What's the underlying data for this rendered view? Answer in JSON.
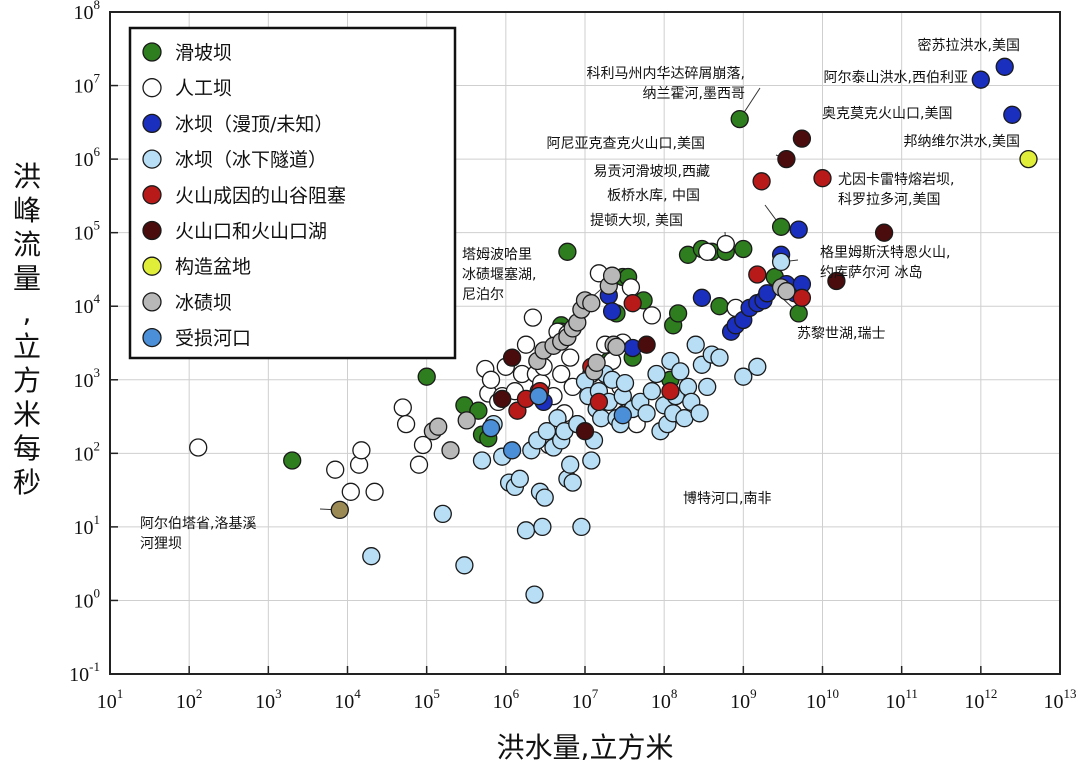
{
  "chart_data": {
    "type": "scatter",
    "xlabel": "洪水量,立方米",
    "ylabel": "洪峰流量,立方米每秒",
    "x_scale": "log",
    "y_scale": "log",
    "xlim": [
      10,
      10000000000000
    ],
    "ylim": [
      0.1,
      100000000
    ],
    "x_ticks": [
      {
        "base": "10",
        "exp": "1"
      },
      {
        "base": "10",
        "exp": "2"
      },
      {
        "base": "10",
        "exp": "3"
      },
      {
        "base": "10",
        "exp": "4"
      },
      {
        "base": "10",
        "exp": "5"
      },
      {
        "base": "10",
        "exp": "6"
      },
      {
        "base": "10",
        "exp": "7"
      },
      {
        "base": "10",
        "exp": "8"
      },
      {
        "base": "10",
        "exp": "9"
      },
      {
        "base": "10",
        "exp": "10"
      },
      {
        "base": "10",
        "exp": "11"
      },
      {
        "base": "10",
        "exp": "12"
      },
      {
        "base": "10",
        "exp": "13"
      }
    ],
    "y_ticks": [
      {
        "base": "10",
        "exp": "-1"
      },
      {
        "base": "10",
        "exp": "0"
      },
      {
        "base": "10",
        "exp": "1"
      },
      {
        "base": "10",
        "exp": "2"
      },
      {
        "base": "10",
        "exp": "3"
      },
      {
        "base": "10",
        "exp": "4"
      },
      {
        "base": "10",
        "exp": "5"
      },
      {
        "base": "10",
        "exp": "6"
      },
      {
        "base": "10",
        "exp": "7"
      },
      {
        "base": "10",
        "exp": "8"
      }
    ],
    "grid": true,
    "legend_position": "top-left",
    "series": [
      {
        "name": "滑坡坝",
        "color": "#2e7d1e",
        "points": [
          [
            2000,
            80
          ],
          [
            100000,
            1100
          ],
          [
            300000,
            450
          ],
          [
            500000,
            180
          ],
          [
            600000,
            160
          ],
          [
            450000,
            380
          ],
          [
            5000000,
            5500
          ],
          [
            5000000,
            4500
          ],
          [
            6000000,
            55000
          ],
          [
            20000000,
            1800
          ],
          [
            25000000,
            8000
          ],
          [
            30000000,
            25000
          ],
          [
            35000000,
            25000
          ],
          [
            40000000,
            2000
          ],
          [
            55000000,
            12000
          ],
          [
            120000000,
            1000
          ],
          [
            130000000,
            5500
          ],
          [
            150000000,
            8000
          ],
          [
            200000000,
            50000
          ],
          [
            300000000,
            60000
          ],
          [
            400000000,
            55000
          ],
          [
            500000000,
            10000
          ],
          [
            600000000,
            55000
          ],
          [
            900000000,
            3500000
          ],
          [
            1000000000,
            60000
          ],
          [
            3000000000,
            120000
          ],
          [
            5000000000,
            8000
          ],
          [
            2500000000,
            25000
          ]
        ]
      },
      {
        "name": "人工坝",
        "color": "#ffffff",
        "points": [
          [
            130,
            120
          ],
          [
            7000,
            60
          ],
          [
            11000,
            30
          ],
          [
            14000,
            70
          ],
          [
            15000,
            110
          ],
          [
            22000,
            30
          ],
          [
            50000,
            420
          ],
          [
            55000,
            250
          ],
          [
            80000,
            70
          ],
          [
            90000,
            130
          ],
          [
            550000,
            1400
          ],
          [
            600000,
            650
          ],
          [
            650000,
            1000
          ],
          [
            800000,
            500
          ],
          [
            900000,
            600
          ],
          [
            1000000,
            1500
          ],
          [
            1300000,
            700
          ],
          [
            1600000,
            1200
          ],
          [
            1800000,
            3000
          ],
          [
            2200000,
            7000
          ],
          [
            2400000,
            1200
          ],
          [
            2600000,
            700
          ],
          [
            2800000,
            900
          ],
          [
            3000000,
            1500
          ],
          [
            3500000,
            130
          ],
          [
            4000000,
            600
          ],
          [
            4500000,
            4500
          ],
          [
            5000000,
            1200
          ],
          [
            5500000,
            350
          ],
          [
            6000000,
            4200
          ],
          [
            6500000,
            2000
          ],
          [
            7000000,
            800
          ],
          [
            8000000,
            250
          ],
          [
            12000000,
            1200
          ],
          [
            15000000,
            28000
          ],
          [
            18000000,
            3000
          ],
          [
            22000000,
            1800
          ],
          [
            28000000,
            800
          ],
          [
            30000000,
            3200
          ],
          [
            32000000,
            350
          ],
          [
            38000000,
            18000
          ],
          [
            45000000,
            250
          ],
          [
            70000000,
            7500
          ],
          [
            350000000,
            55000
          ],
          [
            600000000,
            70000
          ],
          [
            800000000,
            9500
          ]
        ]
      },
      {
        "name": "冰坝（漫顶/未知）",
        "color": "#1b2fbf",
        "points": [
          [
            3000000,
            500
          ],
          [
            20000000,
            14000
          ],
          [
            22000000,
            8500
          ],
          [
            40000000,
            2700
          ],
          [
            300000000,
            13000
          ],
          [
            700000000,
            4500
          ],
          [
            800000000,
            5500
          ],
          [
            1000000000,
            6500
          ],
          [
            1200000000,
            9500
          ],
          [
            1500000000,
            11000
          ],
          [
            1800000000,
            12000
          ],
          [
            2000000000,
            15000
          ],
          [
            3000000000,
            50000
          ],
          [
            3500000000,
            20000
          ],
          [
            4500000000,
            15000
          ],
          [
            5000000000,
            110000
          ],
          [
            5500000000,
            20000
          ],
          [
            1000000000000,
            12000000
          ],
          [
            2000000000000,
            18000000
          ],
          [
            2500000000000,
            4000000
          ]
        ]
      },
      {
        "name": "冰坝（冰下隧道）",
        "color": "#b8def5",
        "points": [
          [
            20000,
            4
          ],
          [
            160000,
            15
          ],
          [
            300000,
            3
          ],
          [
            500000,
            80
          ],
          [
            700000,
            250
          ],
          [
            900000,
            90
          ],
          [
            1100000,
            40
          ],
          [
            1300000,
            35
          ],
          [
            1500000,
            45
          ],
          [
            1800000,
            9
          ],
          [
            2100000,
            110
          ],
          [
            2300000,
            1.2
          ],
          [
            2500000,
            150
          ],
          [
            2700000,
            30
          ],
          [
            2900000,
            10
          ],
          [
            3100000,
            25
          ],
          [
            3300000,
            200
          ],
          [
            4000000,
            120
          ],
          [
            4500000,
            300
          ],
          [
            5000000,
            150
          ],
          [
            5500000,
            200
          ],
          [
            6000000,
            45
          ],
          [
            6500000,
            70
          ],
          [
            7000000,
            40
          ],
          [
            8000000,
            250
          ],
          [
            9000000,
            10
          ],
          [
            10000000,
            950
          ],
          [
            11000000,
            600
          ],
          [
            12000000,
            80
          ],
          [
            13000000,
            150
          ],
          [
            14000000,
            400
          ],
          [
            15000000,
            700
          ],
          [
            16000000,
            300
          ],
          [
            18000000,
            1200
          ],
          [
            20000000,
            500
          ],
          [
            22000000,
            1000
          ],
          [
            25000000,
            300
          ],
          [
            28000000,
            250
          ],
          [
            30000000,
            600
          ],
          [
            32000000,
            900
          ],
          [
            40000000,
            400
          ],
          [
            50000000,
            500
          ],
          [
            60000000,
            350
          ],
          [
            70000000,
            700
          ],
          [
            80000000,
            1200
          ],
          [
            90000000,
            200
          ],
          [
            100000000,
            450
          ],
          [
            110000000,
            250
          ],
          [
            120000000,
            1800
          ],
          [
            130000000,
            350
          ],
          [
            140000000,
            600
          ],
          [
            160000000,
            1300
          ],
          [
            180000000,
            300
          ],
          [
            200000000,
            800
          ],
          [
            220000000,
            500
          ],
          [
            250000000,
            3000
          ],
          [
            280000000,
            350
          ],
          [
            300000000,
            1600
          ],
          [
            350000000,
            800
          ],
          [
            400000000,
            2200
          ],
          [
            500000000,
            2000
          ],
          [
            1000000000,
            1100
          ],
          [
            1500000000,
            1500
          ],
          [
            3000000000,
            40000
          ]
        ]
      },
      {
        "name": "火山成因的山谷阻塞",
        "color": "#b81a1a",
        "points": [
          [
            1400000,
            380
          ],
          [
            1800000,
            550
          ],
          [
            2700000,
            700
          ],
          [
            12000000,
            1500
          ],
          [
            15000000,
            500
          ],
          [
            40000000,
            11000
          ],
          [
            120000000,
            700
          ],
          [
            1500000000,
            27000
          ],
          [
            1700000000,
            500000
          ],
          [
            10000000000,
            550000
          ],
          [
            5500000000,
            13000
          ]
        ]
      },
      {
        "name": "火山口和火山口湖",
        "color": "#4a0c0c",
        "points": [
          [
            900000,
            550
          ],
          [
            1200000,
            2000
          ],
          [
            10000000,
            200
          ],
          [
            60000000,
            3000
          ],
          [
            3500000000,
            1000000
          ],
          [
            5500000000,
            1900000
          ],
          [
            15000000000,
            22000
          ],
          [
            60000000000,
            100000
          ]
        ]
      },
      {
        "name": "构造盆地",
        "color": "#e0ee3a",
        "points": [
          [
            4000000000000,
            1000000
          ]
        ]
      },
      {
        "name": "冰碛坝",
        "color": "#b8b8b8",
        "points": [
          [
            120000,
            200
          ],
          [
            140000,
            230
          ],
          [
            200000,
            110
          ],
          [
            320000,
            280
          ],
          [
            2500000,
            1800
          ],
          [
            3000000,
            2500
          ],
          [
            4000000,
            2900
          ],
          [
            5000000,
            3300
          ],
          [
            6000000,
            3800
          ],
          [
            7000000,
            5000
          ],
          [
            8000000,
            6000
          ],
          [
            9000000,
            9000
          ],
          [
            10000000,
            12000
          ],
          [
            12000000,
            11000
          ],
          [
            13000000,
            1300
          ],
          [
            14000000,
            1700
          ],
          [
            20000000,
            19000
          ],
          [
            22000000,
            26000
          ],
          [
            23000000,
            3000
          ],
          [
            25000000,
            2800
          ],
          [
            3000000000,
            18000
          ],
          [
            3500000000,
            16000
          ]
        ]
      },
      {
        "name": "受损河口",
        "color": "#4b8fd8",
        "points": [
          [
            650000,
            220
          ],
          [
            1200000,
            110
          ],
          [
            2600000,
            600
          ],
          [
            30000000,
            330
          ]
        ]
      },
      {
        "name": "阿尔伯塔省,洛基溪河狸坝",
        "color": "#9c8a55",
        "points": [
          [
            8000,
            17
          ]
        ]
      }
    ],
    "annotations": [
      {
        "lines": [
          "密苏拉洪水,美国"
        ],
        "x": 2000000000000,
        "y": 18000000
      },
      {
        "lines": [
          "科利马州内华达碎屑崩落,",
          "纳兰霍河,墨西哥"
        ],
        "x": 900000000,
        "y": 3500000
      },
      {
        "lines": [
          "阿尔泰山洪水,西伯利亚"
        ],
        "x": 1000000000000,
        "y": 12000000
      },
      {
        "lines": [
          "奥克莫克火山口,美国"
        ],
        "x": 5500000000,
        "y": 1900000
      },
      {
        "lines": [
          "阿尼亚克查克火山口,美国"
        ],
        "x": 3500000000,
        "y": 1000000
      },
      {
        "lines": [
          "邦纳维尔洪水,美国"
        ],
        "x": 4000000000000,
        "y": 1000000
      },
      {
        "lines": [
          "易贡河滑坡坝,西藏"
        ],
        "x": 3000000000,
        "y": 120000
      },
      {
        "lines": [
          "尤因卡雷特熔岩坝,",
          "科罗拉多河,美国"
        ],
        "x": 10000000000,
        "y": 550000
      },
      {
        "lines": [
          "板桥水库, 中国"
        ],
        "x": 600000000,
        "y": 70000
      },
      {
        "lines": [
          "提顿大坝, 美国"
        ],
        "x": 350000000,
        "y": 55000
      },
      {
        "lines": [
          "塔姆波哈里",
          "冰碛堰塞湖,",
          "尼泊尔"
        ],
        "x": 25000000,
        "y": 26000
      },
      {
        "lines": [
          "格里姆斯沃特恩火山,",
          "约库萨尔河 冰岛"
        ],
        "x": 3000000000,
        "y": 40000
      },
      {
        "lines": [
          "苏黎世湖,瑞士"
        ],
        "x": 5000000000,
        "y": 8000
      },
      {
        "lines": [
          "博特河口,南非"
        ],
        "x": 30000000,
        "y": 330
      },
      {
        "lines": [
          "阿尔伯塔省,洛基溪",
          "河狸坝"
        ],
        "x": 8000,
        "y": 17
      }
    ]
  }
}
